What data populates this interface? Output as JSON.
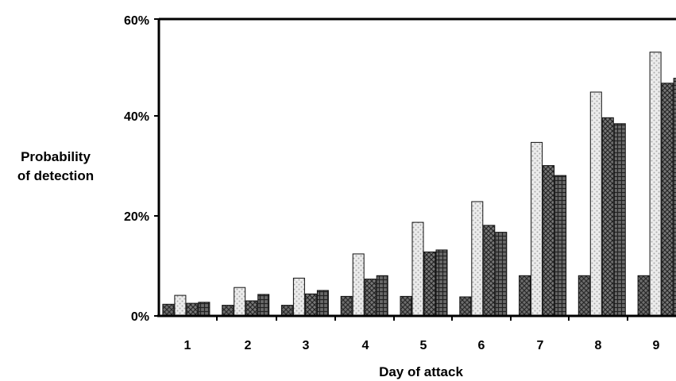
{
  "chart_data": {
    "type": "bar",
    "xlabel": "Day of attack",
    "ylabel_lines": [
      "Probability",
      "of detection"
    ],
    "categories": [
      "1",
      "2",
      "3",
      "4",
      "5",
      "6",
      "7",
      "8",
      "9"
    ],
    "y_ticks": [
      "0%",
      "20%",
      "40%",
      "60%"
    ],
    "ylim": [
      0,
      60
    ],
    "grid": false,
    "series": [
      {
        "values": [
          2.2,
          2.0,
          2.0,
          3.8,
          3.8,
          3.7,
          8.0,
          8.0,
          8.0
        ]
      },
      {
        "values": [
          4.0,
          5.6,
          7.5,
          12.4,
          18.8,
          23.0,
          35.0,
          45.2,
          53.3
        ]
      },
      {
        "values": [
          2.4,
          2.9,
          4.3,
          7.3,
          12.8,
          18.2,
          30.3,
          40.0,
          47.0
        ]
      },
      {
        "values": [
          2.6,
          4.2,
          5.0,
          8.0,
          13.2,
          16.8,
          28.3,
          38.8,
          48.0
        ]
      }
    ],
    "colors": {
      "series_fill": [
        "#6e6e6e",
        "#ececec",
        "#787878",
        "#6a6a6a"
      ],
      "series_pattern": [
        "#2a2a2a",
        "#a9a9a9",
        "#262626",
        "#222222"
      ]
    }
  }
}
